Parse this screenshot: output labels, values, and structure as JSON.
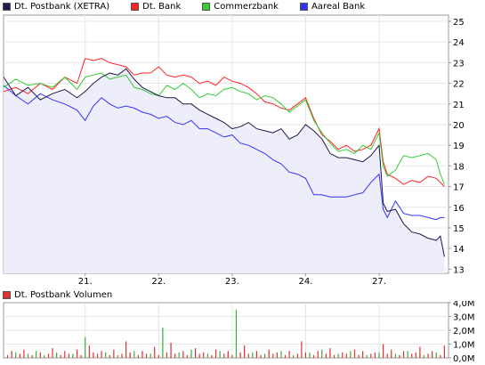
{
  "chart_data": [
    {
      "type": "line",
      "title": "",
      "legend": [
        "Dt. Postbank (XETRA)",
        "Dt. Bank",
        "Commerzbank",
        "Aareal Bank"
      ],
      "legend_placement": "top-left",
      "grid": true,
      "x_ticks": [
        {
          "label": "21.",
          "x": 20
        },
        {
          "label": "22.",
          "x": 38
        },
        {
          "label": "23.",
          "x": 56
        },
        {
          "label": "24.",
          "x": 74
        },
        {
          "label": "27.",
          "x": 92
        }
      ],
      "xlim": [
        0,
        109
      ],
      "ylim": [
        12.8,
        25.3
      ],
      "y_ticks": [
        13,
        14,
        15,
        16,
        17,
        18,
        19,
        20,
        21,
        22,
        23,
        24,
        25
      ],
      "series": [
        {
          "name": "Dt. Postbank (XETRA)",
          "color": "#1c1c4c",
          "fill": "#eeeefa",
          "x": [
            0,
            3,
            6,
            9,
            12,
            15,
            18,
            20,
            22,
            24,
            26,
            28,
            30,
            32,
            34,
            36,
            38,
            40,
            42,
            44,
            46,
            48,
            50,
            52,
            54,
            56,
            58,
            60,
            62,
            64,
            66,
            68,
            70,
            72,
            74,
            76,
            78,
            80,
            82,
            84,
            86,
            88,
            90,
            92,
            93,
            94,
            96,
            98,
            100,
            102,
            104,
            106,
            107,
            108
          ],
          "values": [
            22.3,
            21.4,
            21.8,
            21.2,
            21.5,
            21.7,
            21.3,
            21.6,
            22.0,
            22.3,
            22.5,
            22.4,
            22.7,
            22.2,
            21.8,
            21.6,
            21.4,
            21.3,
            21.3,
            21.0,
            21.0,
            20.7,
            20.5,
            20.3,
            20.1,
            19.8,
            19.9,
            20.1,
            19.8,
            19.7,
            19.6,
            19.8,
            19.3,
            19.5,
            20.0,
            19.7,
            19.3,
            18.6,
            18.4,
            18.4,
            18.3,
            18.2,
            18.5,
            19.0,
            16.2,
            15.8,
            15.9,
            15.2,
            14.8,
            14.7,
            14.5,
            14.4,
            14.6,
            13.6
          ]
        },
        {
          "name": "Dt. Bank",
          "color": "#ff2222",
          "x": [
            0,
            3,
            6,
            9,
            12,
            15,
            18,
            20,
            22,
            24,
            26,
            28,
            30,
            32,
            34,
            36,
            38,
            40,
            42,
            44,
            46,
            48,
            50,
            52,
            54,
            56,
            58,
            60,
            62,
            64,
            66,
            68,
            70,
            72,
            74,
            76,
            78,
            80,
            82,
            84,
            86,
            88,
            90,
            92,
            93,
            94,
            96,
            98,
            100,
            102,
            104,
            106,
            107,
            108
          ],
          "values": [
            21.6,
            21.8,
            21.5,
            22.0,
            21.7,
            22.3,
            22.0,
            23.2,
            23.1,
            23.2,
            23.0,
            22.9,
            22.8,
            22.4,
            22.5,
            22.5,
            22.8,
            22.4,
            22.3,
            22.4,
            22.3,
            22.0,
            22.1,
            21.9,
            22.3,
            22.1,
            22.0,
            21.8,
            21.5,
            21.1,
            21.0,
            20.8,
            20.7,
            21.0,
            21.3,
            20.3,
            19.5,
            19.2,
            18.8,
            19.0,
            18.7,
            18.8,
            19.0,
            19.8,
            18.2,
            17.6,
            17.4,
            17.1,
            17.3,
            17.2,
            17.5,
            17.4,
            17.2,
            17.0
          ]
        },
        {
          "name": "Commerzbank",
          "color": "#33cc33",
          "x": [
            0,
            3,
            6,
            9,
            12,
            15,
            18,
            20,
            22,
            24,
            26,
            28,
            30,
            32,
            34,
            36,
            38,
            40,
            42,
            44,
            46,
            48,
            50,
            52,
            54,
            56,
            58,
            60,
            62,
            64,
            66,
            68,
            70,
            72,
            74,
            76,
            78,
            80,
            82,
            84,
            86,
            88,
            90,
            92,
            93,
            94,
            96,
            98,
            100,
            102,
            104,
            106,
            107,
            108
          ],
          "values": [
            21.8,
            22.2,
            21.9,
            22.0,
            21.8,
            22.3,
            21.7,
            22.3,
            22.4,
            22.5,
            22.2,
            22.3,
            22.4,
            21.8,
            21.7,
            21.5,
            21.4,
            21.9,
            21.7,
            22.0,
            21.7,
            21.3,
            21.5,
            21.4,
            21.7,
            21.8,
            21.6,
            21.5,
            21.2,
            21.4,
            21.3,
            21.0,
            20.6,
            20.9,
            21.2,
            20.2,
            19.6,
            19.1,
            18.7,
            18.8,
            18.6,
            19.0,
            18.8,
            19.6,
            18.0,
            17.5,
            17.8,
            18.5,
            18.4,
            18.5,
            18.6,
            18.3,
            17.6,
            17.1
          ]
        },
        {
          "name": "Aareal Bank",
          "color": "#3333ff",
          "x": [
            0,
            3,
            6,
            9,
            12,
            15,
            18,
            20,
            22,
            24,
            26,
            28,
            30,
            32,
            34,
            36,
            38,
            40,
            42,
            44,
            46,
            48,
            50,
            52,
            54,
            56,
            58,
            60,
            62,
            64,
            66,
            68,
            70,
            72,
            74,
            76,
            78,
            80,
            82,
            84,
            86,
            88,
            90,
            92,
            93,
            94,
            96,
            98,
            100,
            102,
            104,
            106,
            107,
            108
          ],
          "values": [
            21.9,
            21.4,
            21.0,
            21.5,
            21.2,
            21.0,
            20.7,
            20.2,
            20.9,
            21.3,
            21.0,
            20.8,
            20.9,
            20.8,
            20.6,
            20.5,
            20.3,
            20.4,
            20.1,
            20.0,
            20.2,
            19.8,
            19.8,
            19.6,
            19.4,
            19.5,
            19.1,
            19.0,
            18.8,
            18.6,
            18.3,
            18.1,
            17.7,
            17.6,
            17.4,
            16.6,
            16.6,
            16.5,
            16.5,
            16.5,
            16.6,
            16.7,
            17.2,
            17.6,
            15.9,
            15.5,
            16.3,
            15.7,
            15.6,
            15.6,
            15.5,
            15.4,
            15.5,
            15.5
          ]
        }
      ]
    },
    {
      "type": "bar",
      "title": "",
      "legend": [
        "Dt. Postbank Volumen"
      ],
      "legend_placement": "top-left",
      "grid": true,
      "xlim": [
        0,
        109
      ],
      "ylim": [
        0,
        4.0
      ],
      "y_ticks": [
        "0,0M",
        "1,0M",
        "2,0M",
        "3,0M",
        "4,0M"
      ],
      "x_ticks": [
        "21.",
        "22.",
        "23.",
        "24.",
        "27."
      ],
      "series": [
        {
          "name": "Dt. Postbank Volumen",
          "color": "#e03030",
          "x": [
            1,
            2,
            4,
            5,
            7,
            9,
            11,
            12,
            14,
            15,
            16,
            18,
            19,
            21,
            22,
            23,
            24,
            26,
            27,
            29,
            30,
            31,
            33,
            34,
            35,
            37,
            38,
            40,
            41,
            42,
            44,
            45,
            47,
            48,
            49,
            51,
            52,
            54,
            55,
            56,
            58,
            59,
            60,
            62,
            63,
            65,
            66,
            67,
            69,
            70,
            72,
            73,
            74,
            76,
            77,
            79,
            80,
            81,
            83,
            84,
            86,
            87,
            88,
            90,
            91,
            93,
            94,
            95,
            97,
            98,
            100,
            101,
            102,
            104,
            105,
            107,
            108
          ],
          "values": [
            0.2,
            0.5,
            0.3,
            0.6,
            0.2,
            0.4,
            0.3,
            0.7,
            0.2,
            0.5,
            0.3,
            0.6,
            0.2,
            0.9,
            0.4,
            0.3,
            0.5,
            0.2,
            0.6,
            0.3,
            1.2,
            0.4,
            0.2,
            0.5,
            0.3,
            0.8,
            0.2,
            0.4,
            1.1,
            0.3,
            0.5,
            0.2,
            0.7,
            0.3,
            0.4,
            0.2,
            0.6,
            0.3,
            0.5,
            0.2,
            0.4,
            0.9,
            0.3,
            0.5,
            0.2,
            0.6,
            0.3,
            0.4,
            0.2,
            0.5,
            0.3,
            1.2,
            0.4,
            0.2,
            0.5,
            0.3,
            0.7,
            0.2,
            0.4,
            0.3,
            0.6,
            0.2,
            0.5,
            0.3,
            0.4,
            1.0,
            0.3,
            0.6,
            0.2,
            0.5,
            0.3,
            0.4,
            0.8,
            0.3,
            0.5,
            0.2,
            0.9
          ]
        },
        {
          "name": "Dt. Postbank Volumen",
          "color": "#33b033",
          "x": [
            3,
            6,
            8,
            10,
            13,
            17,
            20,
            25,
            28,
            32,
            36,
            39,
            43,
            46,
            50,
            53,
            57,
            61,
            64,
            68,
            71,
            75,
            78,
            82,
            85,
            89,
            92,
            96,
            99,
            103,
            106
          ],
          "values": [
            0.4,
            0.3,
            0.5,
            0.2,
            0.4,
            0.3,
            1.5,
            0.4,
            0.2,
            0.5,
            0.3,
            2.2,
            0.4,
            0.6,
            0.3,
            0.5,
            3.5,
            0.4,
            0.3,
            0.5,
            0.2,
            0.4,
            0.6,
            0.3,
            0.5,
            0.2,
            0.4,
            0.3,
            0.5,
            0.2,
            0.4
          ]
        }
      ]
    }
  ]
}
